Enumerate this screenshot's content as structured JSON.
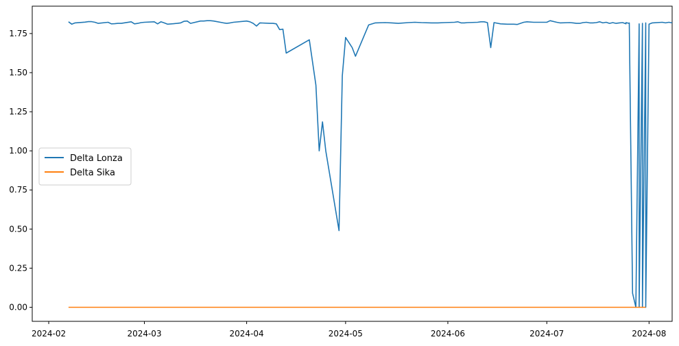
{
  "chart_data": {
    "type": "line",
    "title": "",
    "xlabel": "",
    "ylabel": "",
    "x_axis": {
      "kind": "date",
      "min": "2024-01-27",
      "max": "2024-08-08",
      "ticks": [
        "2024-02-01",
        "2024-03-01",
        "2024-04-01",
        "2024-05-01",
        "2024-06-01",
        "2024-07-01",
        "2024-08-01"
      ],
      "tick_labels": [
        "2024-02",
        "2024-03",
        "2024-04",
        "2024-05",
        "2024-06",
        "2024-07",
        "2024-08"
      ]
    },
    "y_axis": {
      "min": -0.09,
      "max": 1.925,
      "ticks": [
        0.0,
        0.25,
        0.5,
        0.75,
        1.0,
        1.25,
        1.5,
        1.75
      ],
      "tick_labels": [
        "0.00",
        "0.25",
        "0.50",
        "0.75",
        "1.00",
        "1.25",
        "1.50",
        "1.75"
      ]
    },
    "grid": false,
    "legend": "center-left",
    "series": [
      {
        "name": "Delta Lonza",
        "color": "#1f77b4",
        "points": [
          [
            "2024-02-07",
            1.825
          ],
          [
            "2024-02-08",
            1.81
          ],
          [
            "2024-02-09",
            1.818
          ],
          [
            "2024-02-12",
            1.823
          ],
          [
            "2024-02-13",
            1.826
          ],
          [
            "2024-02-14",
            1.826
          ],
          [
            "2024-02-15",
            1.822
          ],
          [
            "2024-02-16",
            1.815
          ],
          [
            "2024-02-19",
            1.822
          ],
          [
            "2024-02-20",
            1.812
          ],
          [
            "2024-02-21",
            1.813
          ],
          [
            "2024-02-22",
            1.815
          ],
          [
            "2024-02-23",
            1.815
          ],
          [
            "2024-02-26",
            1.825
          ],
          [
            "2024-02-27",
            1.812
          ],
          [
            "2024-02-28",
            1.815
          ],
          [
            "2024-02-29",
            1.82
          ],
          [
            "2024-03-01",
            1.822
          ],
          [
            "2024-03-04",
            1.825
          ],
          [
            "2024-03-05",
            1.812
          ],
          [
            "2024-03-06",
            1.825
          ],
          [
            "2024-03-07",
            1.818
          ],
          [
            "2024-03-08",
            1.81
          ],
          [
            "2024-03-11",
            1.815
          ],
          [
            "2024-03-12",
            1.818
          ],
          [
            "2024-03-13",
            1.828
          ],
          [
            "2024-03-14",
            1.83
          ],
          [
            "2024-03-15",
            1.815
          ],
          [
            "2024-03-18",
            1.83
          ],
          [
            "2024-03-19",
            1.83
          ],
          [
            "2024-03-20",
            1.832
          ],
          [
            "2024-03-21",
            1.832
          ],
          [
            "2024-03-22",
            1.83
          ],
          [
            "2024-03-25",
            1.818
          ],
          [
            "2024-03-26",
            1.815
          ],
          [
            "2024-03-27",
            1.818
          ],
          [
            "2024-03-28",
            1.822
          ],
          [
            "2024-04-01",
            1.83
          ],
          [
            "2024-04-02",
            1.825
          ],
          [
            "2024-04-03",
            1.815
          ],
          [
            "2024-04-04",
            1.798
          ],
          [
            "2024-04-05",
            1.818
          ],
          [
            "2024-04-08",
            1.815
          ],
          [
            "2024-04-09",
            1.815
          ],
          [
            "2024-04-10",
            1.812
          ],
          [
            "2024-04-11",
            1.775
          ],
          [
            "2024-04-12",
            1.778
          ],
          [
            "2024-04-13",
            1.625
          ],
          [
            "2024-04-20",
            1.71
          ],
          [
            "2024-04-22",
            1.42
          ],
          [
            "2024-04-23",
            1.0
          ],
          [
            "2024-04-24",
            1.185
          ],
          [
            "2024-04-25",
            1.0
          ],
          [
            "2024-04-29",
            0.49
          ],
          [
            "2024-04-30",
            1.48
          ],
          [
            "2024-05-01",
            1.725
          ],
          [
            "2024-05-03",
            1.66
          ],
          [
            "2024-05-04",
            1.605
          ],
          [
            "2024-05-08",
            1.805
          ],
          [
            "2024-05-10",
            1.818
          ],
          [
            "2024-05-13",
            1.82
          ],
          [
            "2024-05-15",
            1.818
          ],
          [
            "2024-05-17",
            1.815
          ],
          [
            "2024-05-20",
            1.82
          ],
          [
            "2024-05-22",
            1.822
          ],
          [
            "2024-05-24",
            1.82
          ],
          [
            "2024-05-27",
            1.818
          ],
          [
            "2024-05-29",
            1.818
          ],
          [
            "2024-05-31",
            1.82
          ],
          [
            "2024-06-03",
            1.822
          ],
          [
            "2024-06-04",
            1.825
          ],
          [
            "2024-06-05",
            1.818
          ],
          [
            "2024-06-06",
            1.818
          ],
          [
            "2024-06-07",
            1.82
          ],
          [
            "2024-06-10",
            1.822
          ],
          [
            "2024-06-11",
            1.825
          ],
          [
            "2024-06-12",
            1.825
          ],
          [
            "2024-06-13",
            1.82
          ],
          [
            "2024-06-14",
            1.66
          ],
          [
            "2024-06-15",
            1.82
          ],
          [
            "2024-06-17",
            1.812
          ],
          [
            "2024-06-19",
            1.81
          ],
          [
            "2024-06-21",
            1.81
          ],
          [
            "2024-06-22",
            1.808
          ],
          [
            "2024-06-24",
            1.822
          ],
          [
            "2024-06-25",
            1.825
          ],
          [
            "2024-06-27",
            1.822
          ],
          [
            "2024-06-28",
            1.822
          ],
          [
            "2024-07-01",
            1.822
          ],
          [
            "2024-07-02",
            1.832
          ],
          [
            "2024-07-04",
            1.822
          ],
          [
            "2024-07-05",
            1.818
          ],
          [
            "2024-07-08",
            1.82
          ],
          [
            "2024-07-09",
            1.818
          ],
          [
            "2024-07-11",
            1.815
          ],
          [
            "2024-07-12",
            1.82
          ],
          [
            "2024-07-15",
            1.818
          ],
          [
            "2024-07-16",
            1.82
          ],
          [
            "2024-07-18",
            1.818
          ],
          [
            "2024-07-19",
            1.822
          ],
          [
            "2024-07-22",
            1.815
          ],
          [
            "2024-07-23",
            1.818
          ],
          [
            "2024-07-25",
            1.812
          ],
          [
            "2024-07-26",
            1.815
          ],
          [
            "2024-07-29",
            1.812
          ],
          [
            "2024-07-30",
            1.815
          ],
          [
            "2024-07-31",
            1.818
          ],
          [
            "2024-08-01",
            1.81
          ],
          [
            "2024-08-02",
            1.818
          ],
          [
            "2024-08-05",
            1.822
          ],
          [
            "2024-08-06",
            1.818
          ],
          [
            "2024-08-07",
            1.822
          ],
          [
            "2024-08-08",
            1.818
          ],
          [
            "2024-07-10",
            1.815
          ],
          [
            "2024-07-13",
            1.822
          ],
          [
            "2024-07-14",
            1.818
          ],
          [
            "2024-07-17",
            1.825
          ],
          [
            "2024-07-20",
            1.815
          ],
          [
            "2024-07-21",
            1.82
          ],
          [
            "2024-07-24",
            1.82
          ],
          [
            "2024-07-25",
            1.82
          ],
          [
            "2024-07-26",
            1.818
          ],
          [
            "2024-07-27",
            0.09
          ],
          [
            "2024-07-28",
            0.0
          ],
          [
            "2024-07-29",
            0.0
          ],
          [
            "2024-07-30",
            0.0
          ],
          [
            "2024-07-31",
            0.0
          ]
        ]
      },
      {
        "name": "Delta Sika",
        "color": "#ff7f0e",
        "points": [
          [
            "2024-02-07",
            0.0
          ],
          [
            "2024-07-31",
            0.0
          ]
        ]
      }
    ]
  }
}
